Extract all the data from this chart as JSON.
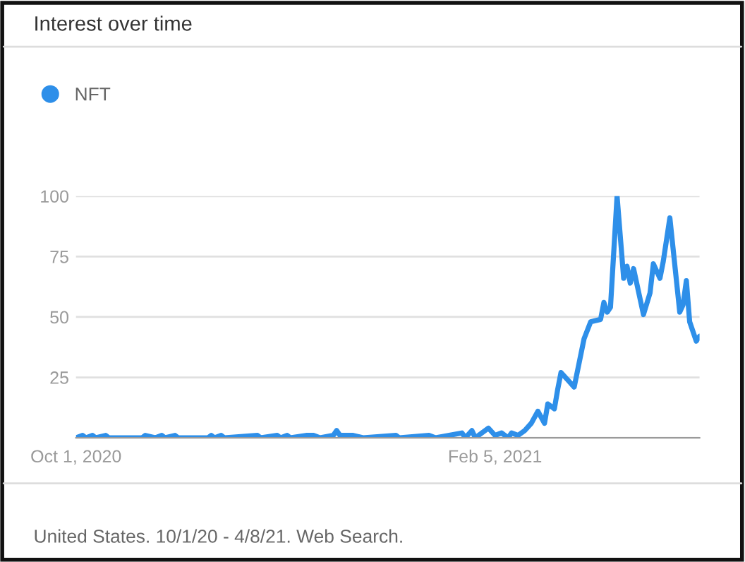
{
  "chart_data": {
    "type": "line",
    "title": "Interest over time",
    "annotations": [
      "United States. 10/1/20 - 4/8/21. Web Search."
    ],
    "x": [
      "2020-10-01",
      "2020-10-03",
      "2020-10-04",
      "2020-10-06",
      "2020-10-07",
      "2020-10-10",
      "2020-10-11",
      "2020-10-21",
      "2020-10-22",
      "2020-10-25",
      "2020-10-27",
      "2020-10-28",
      "2020-10-31",
      "2020-11-01",
      "2020-11-10",
      "2020-11-11",
      "2020-11-12",
      "2020-11-14",
      "2020-11-15",
      "2020-11-25",
      "2020-11-26",
      "2020-12-01",
      "2020-12-02",
      "2020-12-04",
      "2020-12-05",
      "2020-12-10",
      "2020-12-12",
      "2020-12-14",
      "2020-12-18",
      "2020-12-19",
      "2020-12-20",
      "2020-12-24",
      "2020-12-27",
      "2021-01-06",
      "2021-01-07",
      "2021-01-16",
      "2021-01-18",
      "2021-01-26",
      "2021-01-27",
      "2021-01-29",
      "2021-01-30",
      "2021-02-03",
      "2021-02-05",
      "2021-02-07",
      "2021-02-09",
      "2021-02-10",
      "2021-02-12",
      "2021-02-14",
      "2021-02-16",
      "2021-02-18",
      "2021-02-20",
      "2021-02-21",
      "2021-02-23",
      "2021-02-24",
      "2021-02-25",
      "2021-02-27",
      "2021-03-01",
      "2021-03-04",
      "2021-03-06",
      "2021-03-09",
      "2021-03-10",
      "2021-03-11",
      "2021-03-12",
      "2021-03-14",
      "2021-03-16",
      "2021-03-17",
      "2021-03-18",
      "2021-03-19",
      "2021-03-22",
      "2021-03-24",
      "2021-03-25",
      "2021-03-27",
      "2021-03-28",
      "2021-03-30",
      "2021-04-02",
      "2021-04-03",
      "2021-04-04",
      "2021-04-05",
      "2021-04-07",
      "2021-04-08"
    ],
    "series": [
      {
        "name": "NFT",
        "color": "#2e8fe9",
        "values": [
          0,
          1,
          0,
          1,
          0,
          1,
          0,
          0,
          1,
          0,
          1,
          0,
          1,
          0,
          0,
          1,
          0,
          1,
          0,
          1,
          0,
          1,
          0,
          1,
          0,
          1,
          1,
          0,
          1,
          3,
          1,
          1,
          0,
          1,
          0,
          1,
          0,
          2,
          0,
          3,
          0,
          4,
          1,
          2,
          0,
          2,
          1,
          3,
          6,
          11,
          6,
          14,
          12,
          20,
          27,
          24,
          21,
          41,
          48,
          49,
          56,
          52,
          54,
          100,
          66,
          71,
          64,
          70,
          51,
          60,
          72,
          66,
          73,
          91,
          52,
          55,
          65,
          48,
          40,
          42
        ]
      }
    ],
    "xlim": [
      "2020-10-01",
      "2021-04-08"
    ],
    "xticks": [
      {
        "value": "2020-10-01",
        "label": "Oct 1, 2020"
      },
      {
        "value": "2021-02-05",
        "label": "Feb 5, 2021"
      }
    ],
    "ylim": [
      0,
      100
    ],
    "yticks": [
      {
        "value": 0,
        "label": null
      },
      25,
      50,
      75,
      100
    ],
    "grid": "y",
    "legend": "top left",
    "line_style": "solid",
    "marker": "none"
  }
}
